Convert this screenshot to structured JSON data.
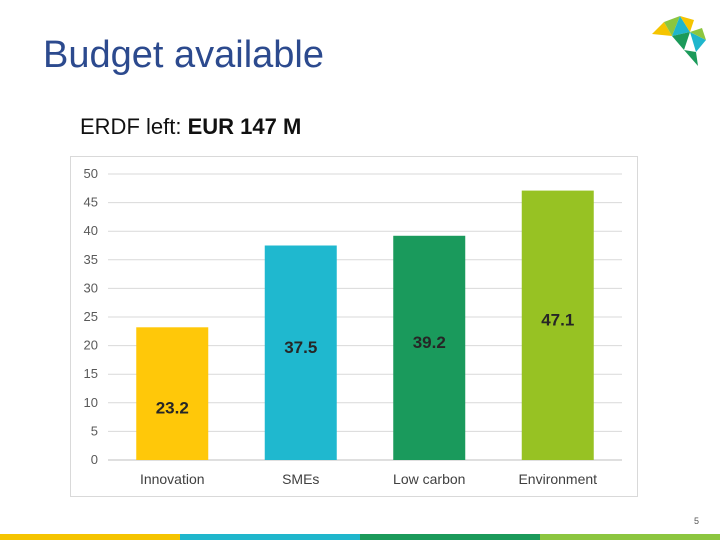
{
  "slide": {
    "title": "Budget available",
    "subtitle_prefix": "ERDF left: ",
    "subtitle_value": "EUR 147 M",
    "page_number": "5"
  },
  "colors": {
    "title": "#2c4a8e",
    "footer": [
      "#f5c400",
      "#1fb6cc",
      "#1b9a5a",
      "#8cc63f"
    ]
  },
  "chart_data": {
    "type": "bar",
    "title": "",
    "xlabel": "",
    "ylabel": "",
    "categories": [
      "Innovation",
      "SMEs",
      "Low carbon",
      "Environment"
    ],
    "values": [
      23.2,
      37.5,
      39.2,
      47.1
    ],
    "data_labels": [
      "23.2",
      "37.5",
      "39.2",
      "47.1"
    ],
    "colors": [
      "#ffc809",
      "#1fb8cf",
      "#1a9a5c",
      "#97c223"
    ],
    "ylim": [
      0,
      50
    ],
    "yticks": [
      0,
      5,
      10,
      15,
      20,
      25,
      30,
      35,
      40,
      45,
      50
    ],
    "grid": true,
    "legend": false
  }
}
